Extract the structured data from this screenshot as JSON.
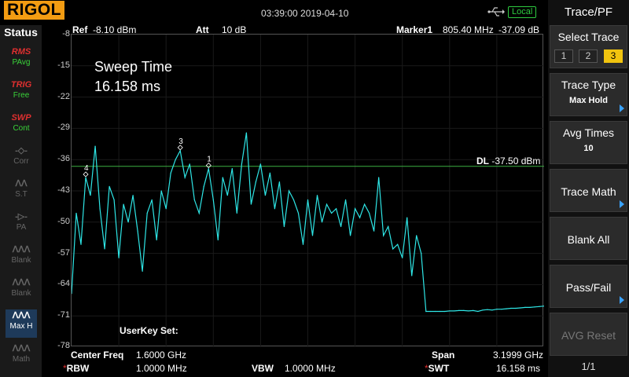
{
  "header": {
    "brand": "RIGOL",
    "datetime": "03:39:00 2019-04-10",
    "local_badge": "Local",
    "usb_icon": "usb-icon"
  },
  "status": {
    "title": "Status",
    "buttons": [
      {
        "top": "RMS",
        "label": "PAvg",
        "state": "on",
        "icon": "rms-avg-icon"
      },
      {
        "top": "TRIG",
        "label": "Free",
        "state": "on",
        "icon": "trig-icon"
      },
      {
        "top": "SWP",
        "label": "Cont",
        "state": "on",
        "icon": "sweep-icon"
      },
      {
        "top": "",
        "label": "Corr",
        "state": "off",
        "icon": "corr-icon"
      },
      {
        "top": "",
        "label": "S.T",
        "state": "off",
        "icon": "signal-track-icon"
      },
      {
        "top": "",
        "label": "PA",
        "state": "off",
        "icon": "preamp-icon"
      },
      {
        "top": "",
        "label": "Blank",
        "state": "off",
        "icon": "trace-blank-icon"
      },
      {
        "top": "",
        "label": "Blank",
        "state": "off",
        "icon": "trace-blank-icon"
      },
      {
        "top": "",
        "label": "Max H",
        "state": "selected",
        "icon": "trace-maxhold-icon"
      },
      {
        "top": "",
        "label": "Math",
        "state": "off",
        "icon": "trace-math-icon"
      }
    ]
  },
  "plot_header": {
    "ref_label": "Ref",
    "ref_value": "-8.10 dBm",
    "att_label": "Att",
    "att_value": "10 dB",
    "marker_label": "Marker1",
    "marker_freq": "805.40 MHz",
    "marker_level": "-37.09 dB"
  },
  "overlay": {
    "sweep_label": "Sweep Time",
    "sweep_value": "16.158 ms",
    "userkey": "UserKey Set:",
    "dl_label": "DL",
    "dl_value": "-37.50 dBm"
  },
  "y_ticks": [
    "-8",
    "-15",
    "-22",
    "-29",
    "-36",
    "-43",
    "-50",
    "-57",
    "-64",
    "-71",
    "-78"
  ],
  "markers": [
    "1",
    "3",
    "4"
  ],
  "bottom": {
    "center_label": "Center Freq",
    "center_value": "1.6000 GHz",
    "span_label": "Span",
    "span_value": "3.1999 GHz",
    "rbw_label": "RBW",
    "rbw_value": "1.0000 MHz",
    "vbw_label": "VBW",
    "vbw_value": "1.0000 MHz",
    "swt_label": "SWT",
    "swt_value": "16.158 ms",
    "star": "*"
  },
  "menu": {
    "title": "Trace/PF",
    "select_trace": {
      "label": "Select Trace",
      "options": [
        "1",
        "2",
        "3"
      ],
      "selected": "3"
    },
    "trace_type": {
      "label": "Trace Type",
      "value": "Max Hold"
    },
    "avg_times": {
      "label": "Avg Times",
      "value": "10"
    },
    "trace_math": {
      "label": "Trace Math"
    },
    "blank_all": {
      "label": "Blank All"
    },
    "pass_fail": {
      "label": "Pass/Fail"
    },
    "avg_reset": {
      "label": "AVG Reset"
    },
    "page": "1/1"
  },
  "colors": {
    "trace": "#2ee6e6",
    "display_line": "#3cb043",
    "brand": "#f39c12",
    "accent": "#3aa3ff",
    "selected_trace": "#f1c40f"
  },
  "chart_data": {
    "type": "line",
    "ylim": [
      -78,
      -8
    ],
    "xlabel": "",
    "ylabel": "",
    "display_line": -37.5,
    "x_unit": "MHz",
    "x": [
      0,
      32,
      64,
      96,
      128,
      160,
      192,
      224,
      256,
      288,
      320,
      352,
      384,
      416,
      448,
      480,
      512,
      544,
      576,
      608,
      640,
      672,
      704,
      736,
      768,
      800,
      832,
      864,
      896,
      928,
      960,
      992,
      1024,
      1056,
      1088,
      1120,
      1152,
      1184,
      1216,
      1248,
      1280,
      1312,
      1344,
      1376,
      1408,
      1440,
      1472,
      1504,
      1536,
      1568,
      1600,
      1632,
      1664,
      1696,
      1728,
      1760,
      1792,
      1824,
      1856,
      1888,
      1920,
      1952,
      1984,
      2016,
      2048,
      2080,
      2112,
      2144,
      2176,
      2208,
      2240,
      2272,
      2304,
      2336,
      2368,
      2400,
      2432,
      2464,
      2496,
      2528,
      2560,
      2592,
      2624,
      2656,
      2688,
      2720,
      2752,
      2784,
      2816,
      2848,
      2880,
      2912,
      2944,
      2976,
      3008,
      3040,
      3072,
      3104,
      3136,
      3168,
      3200
    ],
    "values": [
      -66,
      -48,
      -55,
      -40,
      -44,
      -33,
      -47,
      -56,
      -42,
      -45,
      -58,
      -46,
      -50,
      -44,
      -52,
      -61,
      -48,
      -45,
      -54,
      -43,
      -47,
      -39,
      -36,
      -34,
      -40,
      -37,
      -45,
      -48,
      -42,
      -38,
      -45,
      -54,
      -40,
      -44,
      -38,
      -48,
      -37,
      -30,
      -46,
      -41,
      -37,
      -44,
      -39,
      -47,
      -41,
      -51,
      -43,
      -45,
      -48,
      -55,
      -45,
      -53,
      -44,
      -50,
      -46,
      -48,
      -47,
      -51,
      -45,
      -53,
      -47,
      -49,
      -46,
      -48,
      -52,
      -40,
      -53,
      -51,
      -56,
      -55,
      -58,
      -49,
      -62,
      -53,
      -57,
      -70,
      -70,
      -70,
      -70,
      -70,
      -69.9,
      -69.9,
      -69.8,
      -69.8,
      -69.9,
      -69.8,
      -70,
      -69.7,
      -69.6,
      -69.7,
      -69.5,
      -69.5,
      -69.4,
      -69.3,
      -69.3,
      -69.2,
      -69.1,
      -69.1,
      -69.0,
      -68.9,
      -68.8
    ]
  }
}
